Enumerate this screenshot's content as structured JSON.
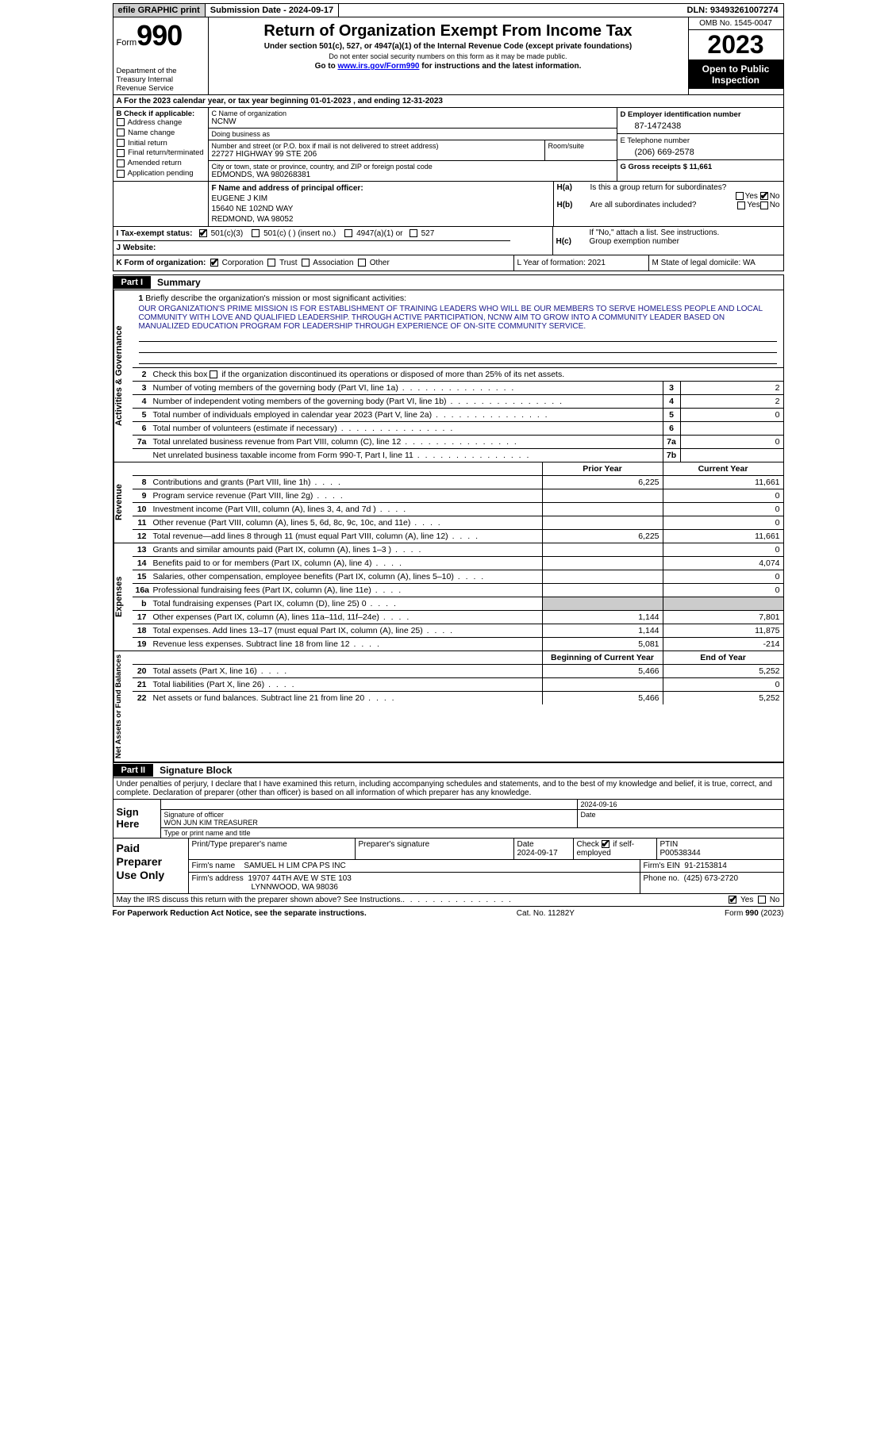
{
  "topbar": {
    "efile": "efile GRAPHIC print",
    "submission": "Submission Date - 2024-09-17",
    "dln": "DLN: 93493261007274"
  },
  "header": {
    "form_label": "Form",
    "form_num": "990",
    "dept": "Department of the Treasury Internal Revenue Service",
    "title": "Return of Organization Exempt From Income Tax",
    "subtitle": "Under section 501(c), 527, or 4947(a)(1) of the Internal Revenue Code (except private foundations)",
    "ssn_note": "Do not enter social security numbers on this form as it may be made public.",
    "goto_pre": "Go to ",
    "goto_link": "www.irs.gov/Form990",
    "goto_post": " for instructions and the latest information.",
    "omb": "OMB No. 1545-0047",
    "year": "2023",
    "open": "Open to Public Inspection"
  },
  "section_a": "A  For the 2023 calendar year, or tax year beginning 01-01-2023    , and ending 12-31-2023",
  "col_b": {
    "label": "B Check if applicable:",
    "items": [
      "Address change",
      "Name change",
      "Initial return",
      "Final return/terminated",
      "Amended return",
      "Application pending"
    ]
  },
  "col_c": {
    "name_label": "C Name of organization",
    "name_val": "NCNW",
    "dba_label": "Doing business as",
    "addr_label": "Number and street (or P.O. box if mail is not delivered to street address)",
    "addr_val": "22727 HIGHWAY 99 STE 206",
    "room_label": "Room/suite",
    "city_label": "City or town, state or province, country, and ZIP or foreign postal code",
    "city_val": "EDMONDS, WA  980268381"
  },
  "col_d": {
    "ein_label": "D Employer identification number",
    "ein_val": "87-1472438",
    "tel_label": "E Telephone number",
    "tel_val": "(206) 669-2578",
    "gross_label": "G Gross receipts $ 11,661"
  },
  "row_f": {
    "label": "F  Name and address of principal officer:",
    "line1": "EUGENE J KIM",
    "line2": "15640 NE 102ND WAY",
    "line3": "REDMOND, WA  98052"
  },
  "row_h": {
    "ha_label": "H(a)",
    "ha_text": "Is this a group return for subordinates?",
    "hb_label": "H(b)",
    "hb_text": "Are all subordinates included?",
    "hb_note": "If \"No,\" attach a list. See instructions.",
    "hc_label": "H(c)",
    "hc_text": "Group exemption number",
    "yes": "Yes",
    "no": "No"
  },
  "row_i": {
    "label": "I    Tax-exempt status:",
    "opt1": "501(c)(3)",
    "opt2": "501(c) (  ) (insert no.)",
    "opt3": "4947(a)(1) or",
    "opt4": "527"
  },
  "row_j": {
    "label": "J    Website:"
  },
  "row_k": {
    "label": "K Form of organization:",
    "o1": "Corporation",
    "o2": "Trust",
    "o3": "Association",
    "o4": "Other"
  },
  "row_l": "L Year of formation: 2021",
  "row_m": "M State of legal domicile: WA",
  "part1": {
    "tag": "Part I",
    "title": "Summary",
    "line1_label": "1",
    "line1_text": "Briefly describe the organization's mission or most significant activities:",
    "mission": "OUR ORGANIZATION'S PRIME MISSION IS FOR ESTABLISHMENT OF TRAINING LEADERS WHO WILL BE OUR MEMBERS TO SERVE HOMELESS PEOPLE AND LOCAL COMMUNITY WITH LOVE AND QUALIFIED LEADERSHIP. THROUGH ACTIVE PARTICIPATION, NCNW AIM TO GROW INTO A COMMUNITY LEADER BASED ON MANUALIZED EDUCATION PROGRAM FOR LEADERSHIP THROUGH EXPERIENCE OF ON-SITE COMMUNITY SERVICE.",
    "line2": "Check this box     if the organization discontinued its operations or disposed of more than 25% of its net assets.",
    "vlabels": {
      "ag": "Activities & Governance",
      "rev": "Revenue",
      "exp": "Expenses",
      "net": "Net Assets or Fund Balances"
    },
    "rows_ag": [
      {
        "n": "3",
        "t": "Number of voting members of the governing body (Part VI, line 1a)",
        "bn": "3",
        "bv": "2"
      },
      {
        "n": "4",
        "t": "Number of independent voting members of the governing body (Part VI, line 1b)",
        "bn": "4",
        "bv": "2"
      },
      {
        "n": "5",
        "t": "Total number of individuals employed in calendar year 2023 (Part V, line 2a)",
        "bn": "5",
        "bv": "0"
      },
      {
        "n": "6",
        "t": "Total number of volunteers (estimate if necessary)",
        "bn": "6",
        "bv": ""
      },
      {
        "n": "7a",
        "t": "Total unrelated business revenue from Part VIII, column (C), line 12",
        "bn": "7a",
        "bv": "0"
      },
      {
        "n": "",
        "t": "Net unrelated business taxable income from Form 990-T, Part I, line 11",
        "bn": "7b",
        "bv": ""
      }
    ],
    "col_headers": {
      "prior": "Prior Year",
      "current": "Current Year"
    },
    "rows_rev": [
      {
        "n": "8",
        "t": "Contributions and grants (Part VIII, line 1h)",
        "p": "6,225",
        "c": "11,661"
      },
      {
        "n": "9",
        "t": "Program service revenue (Part VIII, line 2g)",
        "p": "",
        "c": "0"
      },
      {
        "n": "10",
        "t": "Investment income (Part VIII, column (A), lines 3, 4, and 7d )",
        "p": "",
        "c": "0"
      },
      {
        "n": "11",
        "t": "Other revenue (Part VIII, column (A), lines 5, 6d, 8c, 9c, 10c, and 11e)",
        "p": "",
        "c": "0"
      },
      {
        "n": "12",
        "t": "Total revenue—add lines 8 through 11 (must equal Part VIII, column (A), line 12)",
        "p": "6,225",
        "c": "11,661"
      }
    ],
    "rows_exp": [
      {
        "n": "13",
        "t": "Grants and similar amounts paid (Part IX, column (A), lines 1–3 )",
        "p": "",
        "c": "0"
      },
      {
        "n": "14",
        "t": "Benefits paid to or for members (Part IX, column (A), line 4)",
        "p": "",
        "c": "4,074"
      },
      {
        "n": "15",
        "t": "Salaries, other compensation, employee benefits (Part IX, column (A), lines 5–10)",
        "p": "",
        "c": "0"
      },
      {
        "n": "16a",
        "t": "Professional fundraising fees (Part IX, column (A), line 11e)",
        "p": "",
        "c": "0"
      },
      {
        "n": "b",
        "t": "Total fundraising expenses (Part IX, column (D), line 25) 0",
        "p": "GREY",
        "c": "GREY"
      },
      {
        "n": "17",
        "t": "Other expenses (Part IX, column (A), lines 11a–11d, 11f–24e)",
        "p": "1,144",
        "c": "7,801"
      },
      {
        "n": "18",
        "t": "Total expenses. Add lines 13–17 (must equal Part IX, column (A), line 25)",
        "p": "1,144",
        "c": "11,875"
      },
      {
        "n": "19",
        "t": "Revenue less expenses. Subtract line 18 from line 12",
        "p": "5,081",
        "c": "-214"
      }
    ],
    "col_headers2": {
      "beg": "Beginning of Current Year",
      "end": "End of Year"
    },
    "rows_net": [
      {
        "n": "20",
        "t": "Total assets (Part X, line 16)",
        "p": "5,466",
        "c": "5,252"
      },
      {
        "n": "21",
        "t": "Total liabilities (Part X, line 26)",
        "p": "",
        "c": "0"
      },
      {
        "n": "22",
        "t": "Net assets or fund balances. Subtract line 21 from line 20",
        "p": "5,466",
        "c": "5,252"
      }
    ]
  },
  "part2": {
    "tag": "Part II",
    "title": "Signature Block",
    "decl": "Under penalties of perjury, I declare that I have examined this return, including accompanying schedules and statements, and to the best of my knowledge and belief, it is true, correct, and complete. Declaration of preparer (other than officer) is based on all information of which preparer has any knowledge."
  },
  "sign": {
    "left": "Sign Here",
    "date_top": "2024-09-16",
    "sig_label": "Signature of officer",
    "name": "WON JUN KIM  TREASURER",
    "date_label": "Date",
    "type_label": "Type or print name and title"
  },
  "prep": {
    "left": "Paid Preparer Use Only",
    "h1": "Print/Type preparer's name",
    "h2": "Preparer's signature",
    "h3": "Date",
    "h3v": "2024-09-17",
    "h4": "Check       if self-employed",
    "h5": "PTIN",
    "h5v": "P00538344",
    "firm_label": "Firm's name",
    "firm_val": "SAMUEL H LIM CPA PS INC",
    "ein_label": "Firm's EIN",
    "ein_val": "91-2153814",
    "addr_label": "Firm's address",
    "addr_val1": "19707 44TH AVE W STE 103",
    "addr_val2": "LYNNWOOD, WA  98036",
    "phone_label": "Phone no.",
    "phone_val": "(425) 673-2720"
  },
  "footer": {
    "discuss": "May the IRS discuss this return with the preparer shown above? See Instructions.",
    "yes": "Yes",
    "no": "No",
    "paperwork": "For Paperwork Reduction Act Notice, see the separate instructions.",
    "cat": "Cat. No. 11282Y",
    "form": "Form 990 (2023)"
  }
}
